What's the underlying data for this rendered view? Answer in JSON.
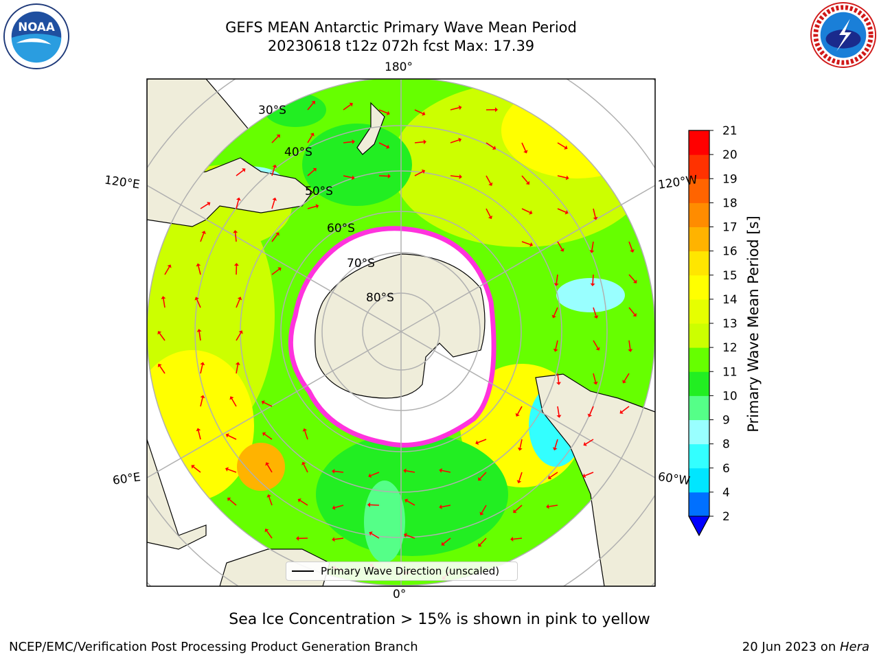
{
  "title": {
    "line1": "GEFS MEAN Antarctic Primary Wave Mean Period",
    "line2": "20230618 t12z 072h fcst   Max: 17.39"
  },
  "logos": {
    "left": "noaa-logo",
    "right": "national-weather-service-logo"
  },
  "map": {
    "projection": "south-polar-stereographic",
    "longitude_labels": {
      "top": "180°",
      "bottom": "0°",
      "upper_left": "120°E",
      "upper_right": "120°W",
      "lower_left": "60°E",
      "lower_right": "60°W"
    },
    "latitude_labels": [
      "30°S",
      "40°S",
      "50°S",
      "60°S",
      "70°S",
      "80°S"
    ],
    "colors": {
      "land": "#efedda",
      "ocean_dominant_low": "#22ee22",
      "ocean_dominant_mid": "#ccff00",
      "ocean_dominant_high": "#ffff00",
      "antarctic_continent": "#efedda",
      "sea_ice": "#ffffff",
      "sea_ice_edge": "#ff33dd",
      "direction_arrow": "#ff0000",
      "gridline": "#b0b0b0"
    }
  },
  "legend": {
    "label": "Primary Wave Direction (unscaled)"
  },
  "colorbar": {
    "title": "Primary Wave Mean Period [s]",
    "ticks": [
      "21",
      "20",
      "19",
      "18",
      "17",
      "16",
      "15",
      "14",
      "13",
      "12",
      "11",
      "10",
      "9",
      "8",
      "6",
      "4",
      "2"
    ],
    "levels": [
      2,
      4,
      6,
      8,
      9,
      10,
      11,
      12,
      13,
      14,
      15,
      16,
      17,
      18,
      19,
      20,
      21
    ],
    "colors": [
      "#0070ff",
      "#00e6ff",
      "#33ffff",
      "#99ffff",
      "#55ff88",
      "#22ee22",
      "#66ff00",
      "#ccff00",
      "#e6ff00",
      "#ffff00",
      "#ffe600",
      "#ffb300",
      "#ff8c00",
      "#ff6400",
      "#ff3200",
      "#ff0000"
    ],
    "under_color": "#0000ff"
  },
  "footnote": "Sea Ice Concentration > 15% is shown in pink to yellow",
  "footer": {
    "left": "NCEP/EMC/Verification Post Processing Product Generation Branch",
    "right_date": "20 Jun 2023 on ",
    "right_host": "Hera"
  }
}
